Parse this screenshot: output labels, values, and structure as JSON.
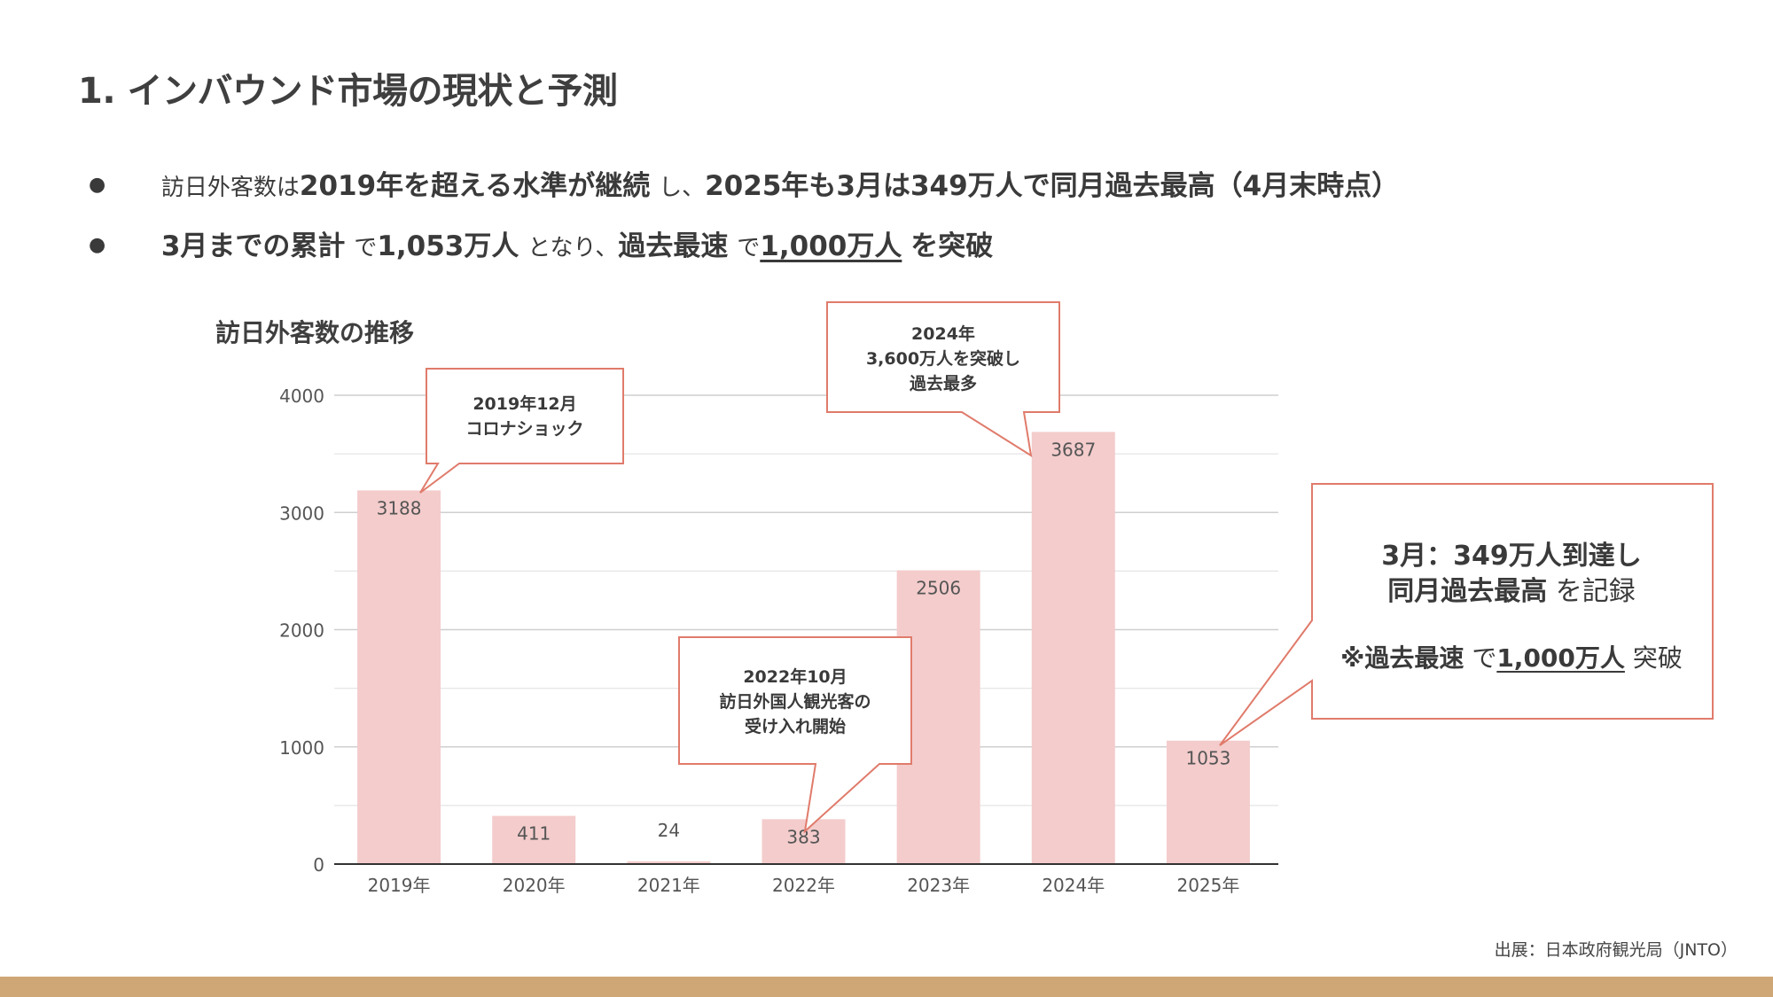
{
  "title": "1. インバウンド市場の現状と予測",
  "bullets": [
    {
      "dot": "●",
      "p1": "訪日外客数は",
      "p2": "2019年を超える水準が継続",
      "p3": "し、",
      "p4": "2025年も3月は349万人で同月過去最高（4月末時点）"
    },
    {
      "dot": "●",
      "p1": "3月までの累計",
      "p2": "で",
      "p3": "1,053万人",
      "p4": "となり、",
      "p5": "過去最速",
      "p6": "で",
      "p7": "1,000万人",
      "p8": "を突破"
    }
  ],
  "chart_data": {
    "type": "bar",
    "title": "訪日外客数の推移",
    "categories": [
      "2019年",
      "2020年",
      "2021年",
      "2022年",
      "2023年",
      "2024年",
      "2025年"
    ],
    "values": [
      3188,
      411,
      24,
      383,
      2506,
      3687,
      1053
    ],
    "value_labels": [
      "3188",
      "411",
      "24",
      "383",
      "2506",
      "3687",
      "1053"
    ],
    "yticks": [
      "0",
      "1000",
      "2000",
      "3000",
      "4000"
    ],
    "ylim": [
      0,
      4000
    ],
    "grid": true,
    "bar_color": "#f4cccc",
    "annotations": [
      {
        "lines": [
          "2019年12月",
          "コロナショック"
        ]
      },
      {
        "lines": [
          "2022年10月",
          "訪日外国人観光客の",
          "受け入れ開始"
        ]
      },
      {
        "lines": [
          "2024年",
          "3,600万人を突破し",
          "過去最多"
        ]
      }
    ]
  },
  "side_box": {
    "line1": "3月：349万人到達し",
    "line2_bold": "同月過去最高",
    "line2_rest": "を記録",
    "line3_a": "※過去最速",
    "line3_b": "で",
    "line3_c": "1,000万人",
    "line3_d": "突破"
  },
  "source": "出展：日本政府観光局（JNTO）",
  "colors": {
    "callout_border": "#e07b6b",
    "footer": "#cfa777",
    "axis": "#444444"
  }
}
